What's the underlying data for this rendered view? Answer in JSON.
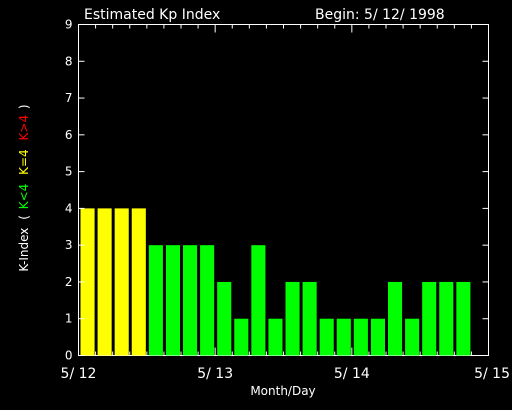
{
  "chart_data": {
    "type": "bar",
    "title": "Estimated Kp Index",
    "begin_label": "Begin: 5/ 12/ 1998",
    "xlabel": "Month/Day",
    "ylabel": {
      "prefix": "K-Index",
      "open": "(",
      "low": "K<4",
      "mid": "K=4",
      "high": "K>4",
      "close": ")"
    },
    "ylim": [
      0,
      9
    ],
    "yticks": [
      "0",
      "1",
      "2",
      "3",
      "4",
      "5",
      "6",
      "7",
      "8",
      "9"
    ],
    "xlim": [
      0,
      24
    ],
    "xticks": [
      {
        "pos": 0,
        "label": "5/ 12"
      },
      {
        "pos": 8,
        "label": "5/ 13"
      },
      {
        "pos": 16,
        "label": "5/ 14"
      },
      {
        "pos": 24,
        "label": "5/ 15"
      }
    ],
    "values": [
      4,
      4,
      4,
      4,
      3,
      3,
      3,
      3,
      2,
      1,
      3,
      1,
      2,
      2,
      1,
      1,
      1,
      1,
      2,
      1,
      2,
      2,
      2
    ],
    "colors": {
      "low": "#00ff00",
      "mid": "#ffff00",
      "high": "#ff0000",
      "axis": "#ffffff",
      "background": "#000000"
    },
    "grid": false,
    "legend": "none"
  }
}
